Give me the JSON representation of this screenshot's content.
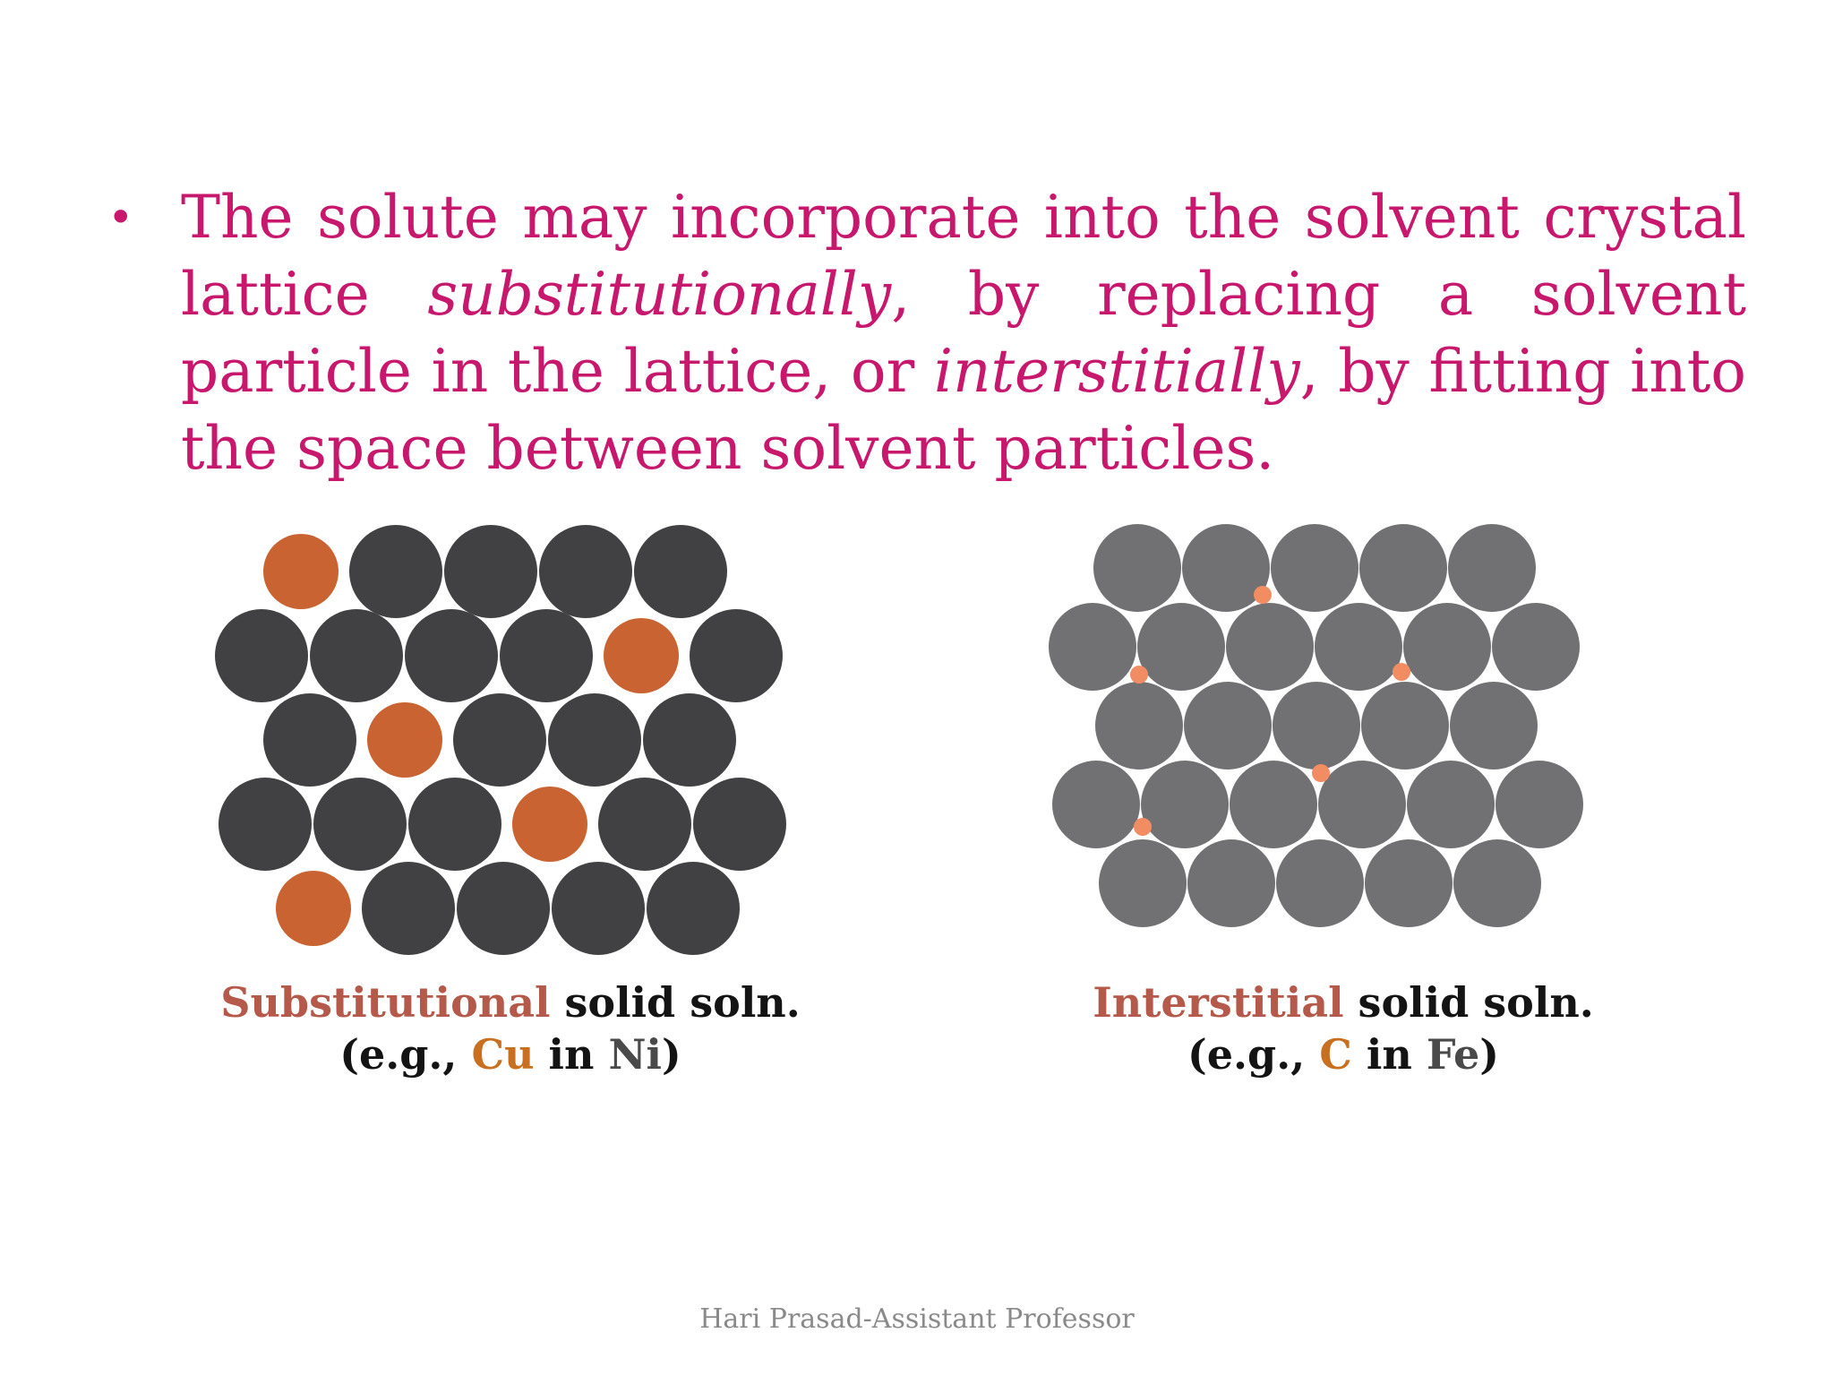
{
  "slide": {
    "bullet_symbol": "•",
    "bullet_part1": "The solute may incorporate into the solvent crystal lattice ",
    "bullet_italic1": "substitutionally",
    "bullet_part2": ", by replacing a solvent particle in the lattice, or ",
    "bullet_italic2": "interstitially",
    "bullet_part3": ", by fitting into the space between solvent particles."
  },
  "substitutional": {
    "type_label": "Substitutional",
    "rest_label": " solid soln.",
    "eg_open": "(e.g., ",
    "solute": "Cu",
    "in_word": " in ",
    "solvent": "Ni",
    "eg_close": ")"
  },
  "interstitial": {
    "type_label": "Interstitial",
    "rest_label": " solid soln.",
    "eg_open": "(e.g., ",
    "solute": "C",
    "in_word": " in ",
    "solvent": "Fe",
    "eg_close": ")"
  },
  "footer": {
    "text": "Hari Prasad-Assistant Professor"
  },
  "colors": {
    "bullet_text": "#c8186d",
    "solvent_dark": "#414042",
    "solute_sub": "#c96331",
    "solvent_gray": "#717072",
    "solute_int": "#f28d63"
  }
}
